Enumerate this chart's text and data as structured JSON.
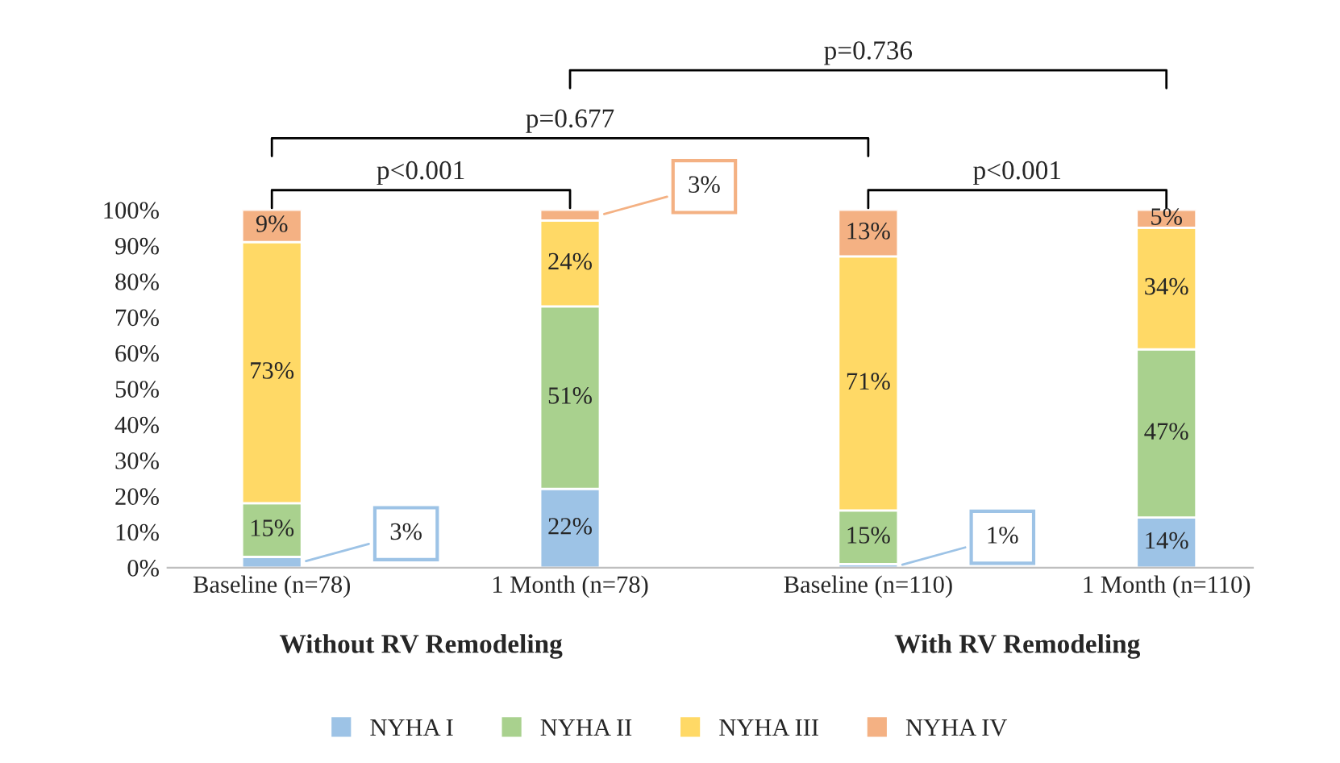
{
  "chart_data": {
    "type": "bar",
    "stacked": true,
    "legend": "bottom",
    "grid": false,
    "categories": [
      "Baseline (n=78)",
      "1 Month (n=78)",
      "Baseline (n=110)",
      "1 Month (n=110)"
    ],
    "series": [
      {
        "name": "NYHA I",
        "color": "#9dc3e6",
        "values": [
          3,
          22,
          1,
          14
        ],
        "value_labels": [
          "3%",
          "22%",
          "1%",
          "14%"
        ]
      },
      {
        "name": "NYHA II",
        "color": "#a9d18e",
        "values": [
          15,
          51,
          15,
          47
        ],
        "value_labels": [
          "15%",
          "51%",
          "15%",
          "47%"
        ]
      },
      {
        "name": "NYHA III",
        "color": "#ffd966",
        "values": [
          73,
          24,
          71,
          34
        ],
        "value_labels": [
          "73%",
          "24%",
          "71%",
          "34%"
        ]
      },
      {
        "name": "NYHA IV",
        "color": "#f4b183",
        "values": [
          9,
          3,
          13,
          5
        ],
        "value_labels": [
          "9%",
          "3%",
          "13%",
          "5%"
        ]
      }
    ],
    "ylim": [
      0,
      100
    ],
    "yticks": [
      {
        "value": 0,
        "label": "0%"
      },
      {
        "value": 10,
        "label": "10%"
      },
      {
        "value": 20,
        "label": "20%"
      },
      {
        "value": 30,
        "label": "30%"
      },
      {
        "value": 40,
        "label": "40%"
      },
      {
        "value": 50,
        "label": "50%"
      },
      {
        "value": 60,
        "label": "60%"
      },
      {
        "value": 70,
        "label": "70%"
      },
      {
        "value": 80,
        "label": "80%"
      },
      {
        "value": 90,
        "label": "90%"
      },
      {
        "value": 100,
        "label": "100%"
      }
    ],
    "annotations": [
      "p<0.001",
      "p=0.677",
      "p=0.736",
      "p<0.001",
      "Without RV Remodeling",
      "With RV Remodeling"
    ]
  }
}
